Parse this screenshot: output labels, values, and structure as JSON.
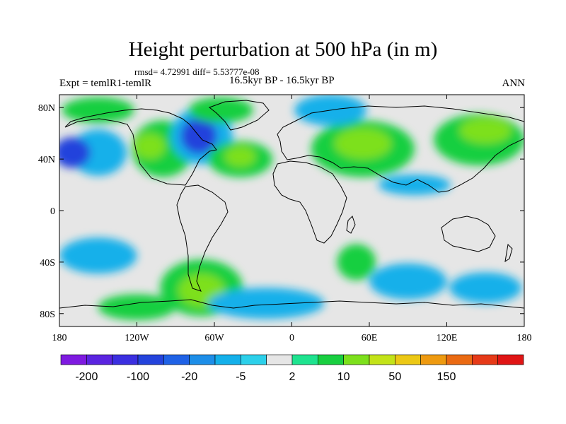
{
  "chart_data": {
    "type": "heatmap",
    "title": "Height perturbation at 500 hPa (in m)",
    "stats_text": "rmsd= 4.72991 diff= 5.53777e-08",
    "left_label": "Expt = temlR1-temlR",
    "center_label": "16.5kyr BP - 16.5kyr BP",
    "right_label": "ANN",
    "xlim": [
      -180,
      180
    ],
    "ylim": [
      -90,
      90
    ],
    "x_ticks": [
      {
        "value": -180,
        "label": "180"
      },
      {
        "value": -120,
        "label": "120W"
      },
      {
        "value": -60,
        "label": "60W"
      },
      {
        "value": 0,
        "label": "0"
      },
      {
        "value": 60,
        "label": "60E"
      },
      {
        "value": 120,
        "label": "120E"
      },
      {
        "value": 180,
        "label": "180"
      }
    ],
    "y_ticks": [
      {
        "value": 80,
        "label": "80N"
      },
      {
        "value": 40,
        "label": "40N"
      },
      {
        "value": 0,
        "label": "0"
      },
      {
        "value": -40,
        "label": "40S"
      },
      {
        "value": -80,
        "label": "80S"
      }
    ],
    "colorbar": {
      "colors": [
        "#7e1ae0",
        "#5a24e0",
        "#3b2fe0",
        "#2443dc",
        "#1f62e6",
        "#1d8ee8",
        "#14b0ea",
        "#2cd0ea",
        "#e6e6e6",
        "#1ee38f",
        "#18cf40",
        "#7de01c",
        "#c3e318",
        "#ecc815",
        "#ee9a10",
        "#ea6a12",
        "#e63a18",
        "#e01515"
      ],
      "tick_labels": [
        "-200",
        "-100",
        "-20",
        "-5",
        "2",
        "10",
        "50",
        "150"
      ]
    },
    "field_blobs": [
      {
        "lon": -150,
        "lat": 45,
        "rlon": 22,
        "rlat": 18,
        "level": -5
      },
      {
        "lon": -170,
        "lat": 45,
        "rlon": 14,
        "rlat": 12,
        "level": -20
      },
      {
        "lon": -100,
        "lat": 48,
        "rlon": 24,
        "rlat": 22,
        "level": 5
      },
      {
        "lon": -110,
        "lat": 50,
        "rlon": 12,
        "rlat": 10,
        "level": 20
      },
      {
        "lon": -70,
        "lat": 58,
        "rlon": 24,
        "rlat": 22,
        "level": -5
      },
      {
        "lon": -72,
        "lat": 58,
        "rlon": 14,
        "rlat": 14,
        "level": -20
      },
      {
        "lon": -55,
        "lat": 78,
        "rlon": 25,
        "rlat": 10,
        "level": 5
      },
      {
        "lon": -150,
        "lat": 78,
        "rlon": 28,
        "rlat": 10,
        "level": 5
      },
      {
        "lon": -40,
        "lat": 40,
        "rlon": 25,
        "rlat": 14,
        "level": 5
      },
      {
        "lon": -40,
        "lat": 42,
        "rlon": 12,
        "rlat": 8,
        "level": 20
      },
      {
        "lon": 55,
        "lat": 48,
        "rlon": 40,
        "rlat": 22,
        "level": 5
      },
      {
        "lon": 55,
        "lat": 52,
        "rlon": 22,
        "rlat": 12,
        "level": 20
      },
      {
        "lon": 30,
        "lat": 78,
        "rlon": 28,
        "rlat": 12,
        "level": -5
      },
      {
        "lon": 145,
        "lat": 55,
        "rlon": 35,
        "rlat": 20,
        "level": 5
      },
      {
        "lon": 150,
        "lat": 62,
        "rlon": 20,
        "rlat": 10,
        "level": 20
      },
      {
        "lon": 95,
        "lat": 20,
        "rlon": 28,
        "rlat": 8,
        "level": -5
      },
      {
        "lon": -150,
        "lat": -35,
        "rlon": 30,
        "rlat": 14,
        "level": -5
      },
      {
        "lon": -70,
        "lat": -60,
        "rlon": 32,
        "rlat": 22,
        "level": 5
      },
      {
        "lon": -70,
        "lat": -62,
        "rlon": 18,
        "rlat": 13,
        "level": 20
      },
      {
        "lon": 50,
        "lat": -40,
        "rlon": 15,
        "rlat": 14,
        "level": 5
      },
      {
        "lon": 90,
        "lat": -55,
        "rlon": 30,
        "rlat": 14,
        "level": -5
      },
      {
        "lon": 150,
        "lat": -60,
        "rlon": 28,
        "rlat": 12,
        "level": -5
      },
      {
        "lon": -20,
        "lat": -72,
        "rlon": 45,
        "rlat": 12,
        "level": -5
      },
      {
        "lon": -120,
        "lat": -75,
        "rlon": 30,
        "rlat": 10,
        "level": 5
      }
    ]
  }
}
